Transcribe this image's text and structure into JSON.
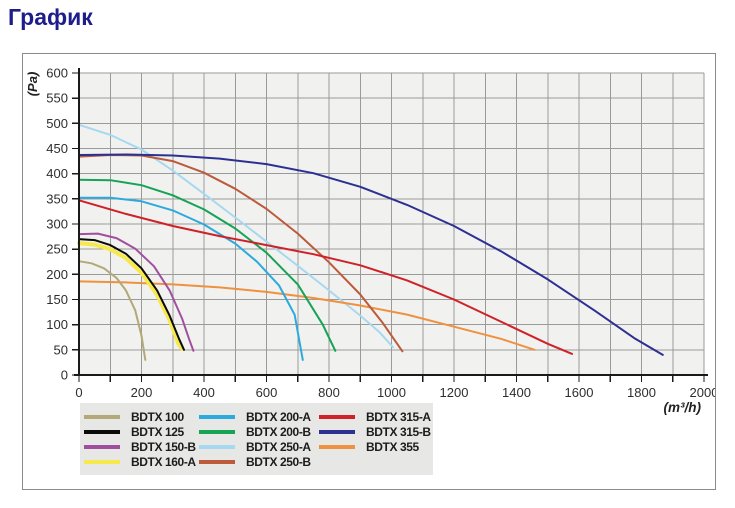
{
  "page": {
    "title": "График"
  },
  "chart_data": {
    "type": "line",
    "title": "График",
    "xlabel": "(m³/h)",
    "ylabel": "(Pa)",
    "xlim": [
      0,
      2000
    ],
    "ylim": [
      0,
      600
    ],
    "x_minor_tick_step": 100,
    "x_label_step": 200,
    "y_tick_step": 50,
    "grid": true,
    "legend_position": "bottom-left",
    "plot_bg_color": "#f1f1ef",
    "grid_color": "#9a9a9a",
    "axis_color": "#1a1a1a",
    "tick_label_color": "#2e2e2e",
    "series": [
      {
        "name": "BDTX 100",
        "color": "#b2a878",
        "width": 2,
        "points": [
          [
            0,
            226
          ],
          [
            40,
            222
          ],
          [
            80,
            212
          ],
          [
            120,
            193
          ],
          [
            150,
            168
          ],
          [
            180,
            128
          ],
          [
            200,
            78
          ],
          [
            212,
            30
          ]
        ]
      },
      {
        "name": "BDTX 125",
        "color": "#0a0a0a",
        "width": 2,
        "points": [
          [
            0,
            270
          ],
          [
            50,
            268
          ],
          [
            100,
            258
          ],
          [
            150,
            241
          ],
          [
            200,
            212
          ],
          [
            250,
            168
          ],
          [
            290,
            118
          ],
          [
            320,
            72
          ],
          [
            336,
            50
          ]
        ]
      },
      {
        "name": "BDTX 150-B",
        "color": "#a04f9e",
        "width": 2,
        "points": [
          [
            0,
            280
          ],
          [
            60,
            281
          ],
          [
            120,
            272
          ],
          [
            180,
            251
          ],
          [
            240,
            216
          ],
          [
            290,
            168
          ],
          [
            330,
            112
          ],
          [
            352,
            72
          ],
          [
            366,
            48
          ]
        ]
      },
      {
        "name": "BDTX 160-A",
        "color": "#f6e94e",
        "width": 4,
        "points": [
          [
            0,
            262
          ],
          [
            50,
            259
          ],
          [
            100,
            250
          ],
          [
            150,
            232
          ],
          [
            200,
            203
          ],
          [
            250,
            159
          ],
          [
            290,
            109
          ],
          [
            318,
            62
          ],
          [
            330,
            52
          ]
        ]
      },
      {
        "name": "BDTX 200-A",
        "color": "#2caade",
        "width": 2,
        "points": [
          [
            0,
            352
          ],
          [
            100,
            352
          ],
          [
            200,
            345
          ],
          [
            300,
            327
          ],
          [
            400,
            299
          ],
          [
            500,
            261
          ],
          [
            570,
            225
          ],
          [
            640,
            178
          ],
          [
            690,
            120
          ],
          [
            716,
            30
          ]
        ]
      },
      {
        "name": "BDTX 200-B",
        "color": "#15a356",
        "width": 2,
        "points": [
          [
            0,
            388
          ],
          [
            100,
            387
          ],
          [
            200,
            377
          ],
          [
            300,
            357
          ],
          [
            400,
            329
          ],
          [
            500,
            291
          ],
          [
            600,
            243
          ],
          [
            700,
            180
          ],
          [
            780,
            100
          ],
          [
            820,
            48
          ]
        ]
      },
      {
        "name": "BDTX 250-A",
        "color": "#a6d8f0",
        "width": 2,
        "points": [
          [
            0,
            497
          ],
          [
            100,
            477
          ],
          [
            200,
            448
          ],
          [
            300,
            406
          ],
          [
            400,
            360
          ],
          [
            500,
            313
          ],
          [
            600,
            265
          ],
          [
            700,
            217
          ],
          [
            800,
            168
          ],
          [
            900,
            118
          ],
          [
            960,
            86
          ],
          [
            1005,
            55
          ]
        ]
      },
      {
        "name": "BDTX 250-B",
        "color": "#bb5b3c",
        "width": 2,
        "points": [
          [
            0,
            434
          ],
          [
            100,
            437
          ],
          [
            200,
            436
          ],
          [
            300,
            425
          ],
          [
            400,
            402
          ],
          [
            500,
            370
          ],
          [
            600,
            330
          ],
          [
            700,
            281
          ],
          [
            800,
            224
          ],
          [
            900,
            160
          ],
          [
            970,
            105
          ],
          [
            1035,
            47
          ]
        ]
      },
      {
        "name": "BDTX 315-A",
        "color": "#cf2128",
        "width": 2,
        "points": [
          [
            0,
            347
          ],
          [
            150,
            320
          ],
          [
            300,
            296
          ],
          [
            450,
            276
          ],
          [
            600,
            258
          ],
          [
            750,
            240
          ],
          [
            900,
            218
          ],
          [
            1050,
            188
          ],
          [
            1200,
            150
          ],
          [
            1350,
            106
          ],
          [
            1500,
            62
          ],
          [
            1578,
            42
          ]
        ]
      },
      {
        "name": "BDTX 315-B",
        "color": "#2c3092",
        "width": 2,
        "points": [
          [
            0,
            437
          ],
          [
            150,
            438
          ],
          [
            300,
            436
          ],
          [
            450,
            430
          ],
          [
            600,
            419
          ],
          [
            750,
            401
          ],
          [
            900,
            374
          ],
          [
            1050,
            338
          ],
          [
            1200,
            296
          ],
          [
            1350,
            246
          ],
          [
            1500,
            190
          ],
          [
            1650,
            128
          ],
          [
            1780,
            72
          ],
          [
            1868,
            40
          ]
        ]
      },
      {
        "name": "BDTX 355",
        "color": "#ee9140",
        "width": 2,
        "points": [
          [
            0,
            186
          ],
          [
            150,
            184
          ],
          [
            300,
            180
          ],
          [
            450,
            174
          ],
          [
            600,
            165
          ],
          [
            750,
            153
          ],
          [
            900,
            138
          ],
          [
            1050,
            120
          ],
          [
            1200,
            96
          ],
          [
            1350,
            72
          ],
          [
            1458,
            50
          ]
        ]
      }
    ]
  }
}
